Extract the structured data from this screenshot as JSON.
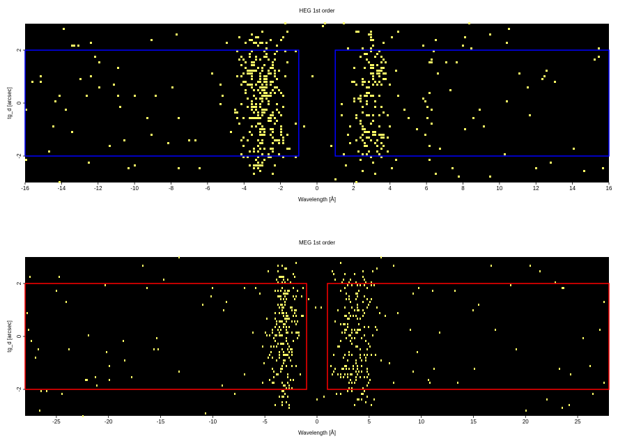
{
  "colors": {
    "background": "#000000",
    "events": "#ffff66",
    "heg_region": "#0000ff",
    "meg_region": "#ff0000"
  },
  "chart_data": [
    {
      "type": "heatmap",
      "title": "HEG 1st order",
      "xlabel": "Wavelength [Å]",
      "ylabel": "tg_d [arcsec]",
      "xlim": [
        -16,
        16
      ],
      "ylim": [
        -3,
        3
      ],
      "xticks": [
        "-16",
        "-14",
        "-12",
        "-10",
        "-8",
        "-6",
        "-4",
        "-2",
        "0",
        "2",
        "4",
        "6",
        "8",
        "10",
        "12",
        "14",
        "16"
      ],
      "yticks": [
        "-2",
        "0",
        "2"
      ],
      "regions": [
        {
          "x": [
            -16,
            -1
          ],
          "y": [
            -2,
            2
          ]
        },
        {
          "x": [
            1,
            16
          ],
          "y": [
            -2,
            2
          ]
        }
      ],
      "event_clusters": [
        {
          "center": -3.0,
          "width": 1.1,
          "count": 300
        },
        {
          "center": 3.0,
          "width": 1.0,
          "count": 160
        },
        {
          "center": 6.2,
          "width": 0.4,
          "count": 18
        }
      ],
      "background_events": 120
    },
    {
      "type": "heatmap",
      "title": "MEG 1st order",
      "xlabel": "Wavelength [Å]",
      "ylabel": "tg_d [arcsec]",
      "xlim": [
        -28,
        28
      ],
      "ylim": [
        -3,
        3
      ],
      "xticks": [
        "-25",
        "-20",
        "-15",
        "-10",
        "-5",
        "0",
        "5",
        "10",
        "15",
        "20",
        "25"
      ],
      "yticks": [
        "-2",
        "0",
        "2"
      ],
      "regions": [
        {
          "x": [
            -28,
            -1
          ],
          "y": [
            -2,
            2
          ]
        },
        {
          "x": [
            1,
            28
          ],
          "y": [
            -2,
            2
          ]
        }
      ],
      "event_clusters": [
        {
          "center": -3.2,
          "width": 1.3,
          "count": 220
        },
        {
          "center": 3.5,
          "width": 1.6,
          "count": 190
        }
      ],
      "background_events": 110
    }
  ]
}
